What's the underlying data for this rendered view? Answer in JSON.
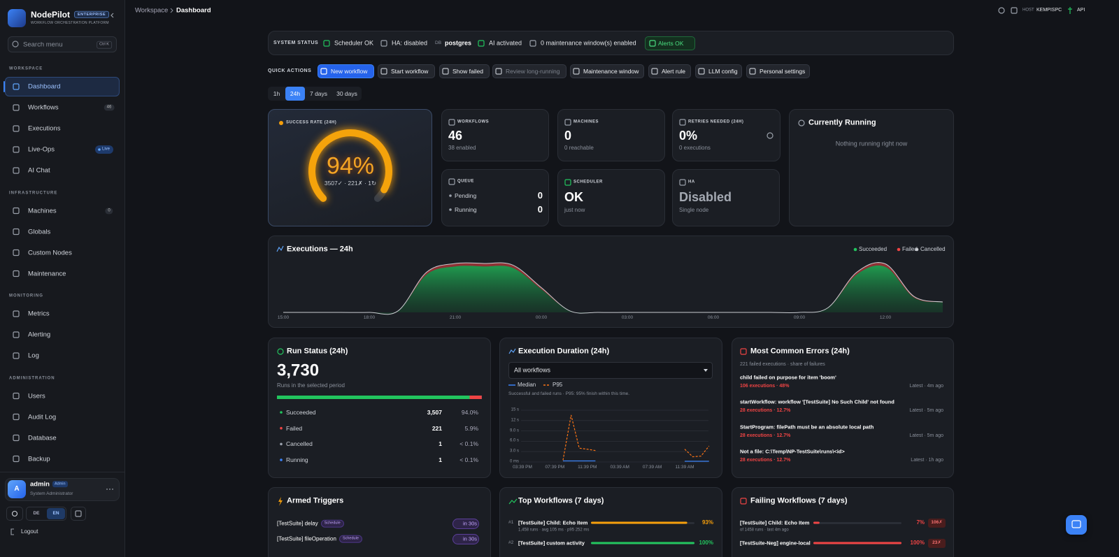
{
  "sidebar": {
    "brand": {
      "name": "NodePilot",
      "badge": "ENTERPRISE",
      "tagline": "WORKFLOW ORCHESTRATION PLATFORM"
    },
    "search": {
      "placeholder": "Search menu",
      "shortcut": "Ctrl K"
    },
    "sections": [
      {
        "title": "WORKSPACE",
        "items": [
          {
            "label": "Dashboard",
            "active": true
          },
          {
            "label": "Workflows",
            "badge": 46
          },
          {
            "label": "Executions"
          },
          {
            "label": "Live-Ops",
            "badge": "Live"
          },
          {
            "label": "AI Chat"
          }
        ]
      },
      {
        "title": "INFRASTRUCTURE",
        "items": [
          {
            "label": "Machines",
            "badge": 0
          },
          {
            "label": "Globals"
          },
          {
            "label": "Custom Nodes"
          },
          {
            "label": "Maintenance"
          }
        ]
      },
      {
        "title": "MONITORING",
        "items": [
          {
            "label": "Metrics"
          },
          {
            "label": "Alerting"
          },
          {
            "label": "Log"
          }
        ]
      },
      {
        "title": "ADMINISTRATION",
        "items": [
          {
            "label": "Users"
          },
          {
            "label": "Audit Log"
          },
          {
            "label": "Database"
          },
          {
            "label": "Backup"
          }
        ]
      }
    ],
    "user": {
      "initial": "A",
      "name": "admin",
      "badge": "Admin",
      "role": "System Administrator"
    },
    "languages": [
      "DE",
      "EN"
    ],
    "active_language": 1,
    "logout": "Logout"
  },
  "topbar": {
    "breadcrumb": [
      "Workspace",
      "Dashboard"
    ],
    "host_label": "HOST",
    "host": "KEMPISPC",
    "api": "API"
  },
  "system_status": {
    "label": "SYSTEM STATUS",
    "scheduler": "Scheduler OK",
    "ha": "HA: disabled",
    "db_label": "DB",
    "db": "postgres",
    "ai": "AI activated",
    "maintenance": "0 maintenance window(s) enabled",
    "alerts": "Alerts OK"
  },
  "quick_actions": {
    "label": "QUICK ACTIONS",
    "buttons": [
      {
        "label": "New workflow",
        "primary": true
      },
      {
        "label": "Start workflow"
      },
      {
        "label": "Show failed"
      },
      {
        "label": "Review long-running",
        "disabled": true
      },
      {
        "label": "Maintenance window"
      },
      {
        "label": "Alert rule"
      },
      {
        "label": "LLM config"
      },
      {
        "label": "Personal settings"
      }
    ]
  },
  "time_ranges": {
    "options": [
      "1h",
      "24h",
      "7 days",
      "30 days"
    ],
    "active": 1
  },
  "kpis": {
    "success_rate": {
      "label": "SUCCESS RATE (24H)",
      "value": 94,
      "value_label": "94%",
      "detail": "3507✓ · 221✗ · 1↻"
    },
    "workflows": {
      "label": "WORKFLOWS",
      "value": "46",
      "sub": "38 enabled"
    },
    "machines": {
      "label": "MACHINES",
      "value": "0",
      "sub": "0 reachable"
    },
    "retries": {
      "label": "RETRIES NEEDED (24H)",
      "value": "0%",
      "sub": "0 executions"
    },
    "queue": {
      "label": "QUEUE",
      "rows": [
        {
          "label": "Pending",
          "value": 0
        },
        {
          "label": "Running",
          "value": 0
        }
      ]
    },
    "scheduler": {
      "label": "SCHEDULER",
      "value": "OK",
      "sub": "just now"
    },
    "ha": {
      "label": "HA",
      "value": "Disabled",
      "sub": "Single node"
    }
  },
  "currently_running": {
    "title": "Currently Running",
    "empty": "Nothing running right now"
  },
  "executions_chart": {
    "type": "area",
    "title": "Executions — 24h",
    "stacked": true,
    "categories": [
      "15:00",
      null,
      null,
      "18:00",
      null,
      null,
      "21:00",
      null,
      null,
      "00:00",
      null,
      null,
      "03:00",
      null,
      null,
      "06:00",
      null,
      null,
      "09:00",
      null,
      null,
      "12:00",
      null,
      null
    ],
    "series": [
      {
        "name": "Succeeded",
        "color": "#22c55e",
        "values": [
          0,
          0,
          0,
          0,
          15,
          425,
          515,
          515,
          500,
          260,
          15,
          0,
          0,
          0,
          0,
          0,
          0,
          0,
          0,
          50,
          425,
          510,
          165,
          112
        ]
      },
      {
        "name": "Failed",
        "color": "#ef4444",
        "values": [
          0,
          0,
          0,
          0,
          1,
          26,
          33,
          33,
          31,
          18,
          1,
          0,
          0,
          0,
          0,
          0,
          0,
          0,
          0,
          3,
          25,
          33,
          12,
          5
        ]
      },
      {
        "name": "Cancelled",
        "color": "#c4c7cc",
        "values": [
          0,
          0,
          0,
          0,
          0,
          0,
          0,
          0,
          0,
          0,
          0,
          0,
          0,
          0,
          0,
          0,
          0,
          0,
          0,
          0,
          0,
          0,
          1,
          0
        ]
      }
    ]
  },
  "run_status": {
    "title": "Run Status (24h)",
    "total": "3,730",
    "subtitle": "Runs in the selected period",
    "rows": [
      {
        "label": "Succeeded",
        "count": 3507,
        "count_label": "3,507",
        "share": "94.0%",
        "color": "#22c55e"
      },
      {
        "label": "Failed",
        "count": 221,
        "count_label": "221",
        "share": "5.9%",
        "color": "#ef4444"
      },
      {
        "label": "Cancelled",
        "count": 1,
        "count_label": "1",
        "share": "< 0.1%",
        "color": "#9ca3af"
      },
      {
        "label": "Running",
        "count": 1,
        "count_label": "1",
        "share": "< 0.1%",
        "color": "#3b82f6"
      }
    ]
  },
  "execution_duration": {
    "title": "Execution Duration (24h)",
    "filter": "All workflows",
    "note": "Successful and failed runs · P95: 95% finish within this time.",
    "chart": {
      "type": "line",
      "grid": true,
      "categories": [
        "03:39 PM",
        null,
        null,
        null,
        "07:39 PM",
        null,
        null,
        null,
        "11:39 PM",
        null,
        null,
        null,
        "03:39 AM",
        null,
        null,
        null,
        "07:39 AM",
        null,
        null,
        null,
        "11:39 AM",
        null,
        null,
        null
      ],
      "series": [
        {
          "name": "Median",
          "color": "#3b82f6",
          "values": [
            null,
            null,
            null,
            null,
            null,
            0.3,
            0.3,
            0.3,
            0.3,
            0.3,
            null,
            null,
            null,
            null,
            null,
            null,
            null,
            null,
            null,
            null,
            0.2,
            0.2,
            0.2,
            0.2
          ]
        },
        {
          "name": "P95",
          "color": "#f97316",
          "dashed": true,
          "values": [
            null,
            null,
            null,
            null,
            null,
            0.5,
            13.6,
            4.0,
            3.7,
            3.3,
            null,
            null,
            null,
            null,
            null,
            null,
            null,
            null,
            null,
            null,
            3.7,
            1.5,
            1.7,
            4.6
          ]
        }
      ],
      "ylim": [
        0,
        15
      ],
      "yticks": [
        {
          "value": 0,
          "label": "0 ms"
        },
        {
          "value": 3,
          "label": "3.0 s"
        },
        {
          "value": 6,
          "label": "6.0 s"
        },
        {
          "value": 9,
          "label": "9.0 s"
        },
        {
          "value": 12,
          "label": "12 s"
        },
        {
          "value": 15,
          "label": "15 s"
        }
      ]
    }
  },
  "common_errors": {
    "title": "Most Common Errors (24h)",
    "subtitle": "221 failed executions · share of failures",
    "items": [
      {
        "message": "child failed on purpose for item 'boom'",
        "stats": "106 executions · 48%",
        "latest": "Latest · 4m ago"
      },
      {
        "message": "startWorkflow: workflow '[TestSuite] No Such Child' not found",
        "stats": "28 executions · 12.7%",
        "latest": "Latest · 5m ago"
      },
      {
        "message": "StartProgram: filePath must be an absolute local path",
        "stats": "28 executions · 12.7%",
        "latest": "Latest · 5m ago"
      },
      {
        "message": "Not a file: C:\\Temp\\NP-TestSuite\\runs\\<id>",
        "stats": "28 executions · 12.7%",
        "latest": "Latest · 1h ago"
      }
    ]
  },
  "armed_triggers": {
    "title": "Armed Triggers",
    "items": [
      {
        "name": "[TestSuite] delay",
        "kind": "Schedule",
        "eta": "in 30s"
      },
      {
        "name": "[TestSuite] fileOperation",
        "kind": "Schedule",
        "eta": "in 30s"
      }
    ]
  },
  "top_workflows": {
    "title": "Top Workflows (7 days)",
    "items": [
      {
        "rank": "#1",
        "name": "[TestSuite] Child: Echo Item",
        "meta": "1,458 runs · avg 105 ms · p95 252 ms",
        "pct": 93,
        "pct_label": "93%",
        "color": "#f59e0b"
      },
      {
        "rank": "#2",
        "name": "[TestSuite] custom activity",
        "pct": 100,
        "pct_label": "100%",
        "color": "#22c55e"
      }
    ]
  },
  "failing_workflows": {
    "title": "Failing Workflows (7 days)",
    "items": [
      {
        "name": "[TestSuite] Child: Echo Item",
        "meta": "of 1458 runs · last 4m ago",
        "pct": 7,
        "pct_label": "7%",
        "count": "106✗"
      },
      {
        "name": "[TestSuite-Neg] engine-local",
        "pct": 100,
        "pct_label": "100%",
        "count": "23✗"
      }
    ]
  }
}
